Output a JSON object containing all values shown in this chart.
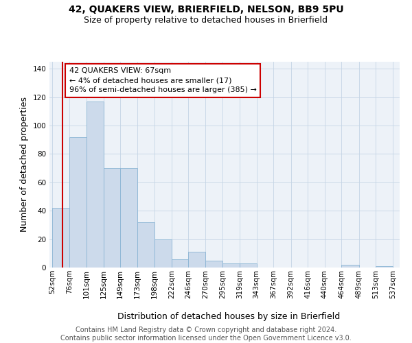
{
  "title": "42, QUAKERS VIEW, BRIERFIELD, NELSON, BB9 5PU",
  "subtitle": "Size of property relative to detached houses in Brierfield",
  "xlabel": "Distribution of detached houses by size in Brierfield",
  "ylabel": "Number of detached properties",
  "bar_edges": [
    52,
    76,
    101,
    125,
    149,
    173,
    198,
    222,
    246,
    270,
    295,
    319,
    343,
    367,
    392,
    416,
    440,
    464,
    489,
    513,
    537
  ],
  "bar_heights": [
    42,
    92,
    117,
    70,
    70,
    32,
    20,
    6,
    11,
    5,
    3,
    3,
    0,
    0,
    0,
    0,
    0,
    2,
    0,
    1,
    0
  ],
  "bar_color": "#ccdaeb",
  "bar_edge_color": "#8ab4d4",
  "property_size": 67,
  "property_line_color": "#cc0000",
  "annotation_text": "42 QUAKERS VIEW: 67sqm\n← 4% of detached houses are smaller (17)\n96% of semi-detached houses are larger (385) →",
  "annotation_box_color": "#ffffff",
  "annotation_box_edge_color": "#cc0000",
  "ylim": [
    0,
    145
  ],
  "yticks": [
    0,
    20,
    40,
    60,
    80,
    100,
    120,
    140
  ],
  "tick_labels": [
    "52sqm",
    "76sqm",
    "101sqm",
    "125sqm",
    "149sqm",
    "173sqm",
    "198sqm",
    "222sqm",
    "246sqm",
    "270sqm",
    "295sqm",
    "319sqm",
    "343sqm",
    "367sqm",
    "392sqm",
    "416sqm",
    "440sqm",
    "464sqm",
    "489sqm",
    "513sqm",
    "537sqm"
  ],
  "grid_color": "#c5d5e5",
  "background_color": "#edf2f8",
  "footer_text": "Contains HM Land Registry data © Crown copyright and database right 2024.\nContains public sector information licensed under the Open Government Licence v3.0.",
  "title_fontsize": 10,
  "subtitle_fontsize": 9,
  "axis_label_fontsize": 9,
  "tick_fontsize": 7.5,
  "footer_fontsize": 7,
  "annotation_fontsize": 8
}
